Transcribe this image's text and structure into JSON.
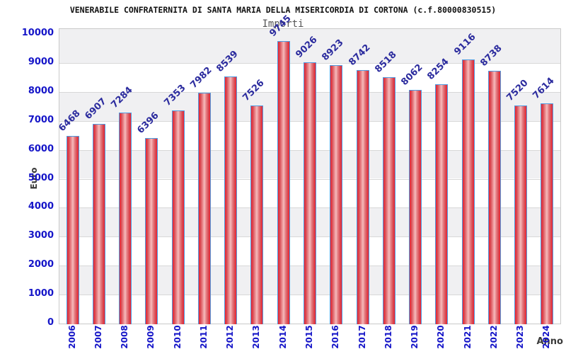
{
  "chart_data": {
    "type": "bar",
    "title": "VENERABILE CONFRATERNITA DI SANTA MARIA DELLA MISERICORDIA DI CORTONA (c.f.80000830515)",
    "subtitle": "Importi",
    "xlabel": "Anno",
    "ylabel": "Euro",
    "categories": [
      "2006",
      "2007",
      "2008",
      "2009",
      "2010",
      "2011",
      "2012",
      "2013",
      "2014",
      "2015",
      "2016",
      "2017",
      "2018",
      "2019",
      "2020",
      "2021",
      "2022",
      "2023",
      "2024"
    ],
    "values": [
      6468,
      6907,
      7284,
      6396,
      7353,
      7982,
      8539,
      7526,
      9745,
      9026,
      8923,
      8742,
      8518,
      8062,
      8254,
      9116,
      8738,
      7520,
      7614
    ],
    "ylim": [
      0,
      10000
    ],
    "ytick_step": 1000,
    "grid": "horizontal gridlines with alternating gray/white bands",
    "legend": "none",
    "bar_value_labels_rotation_deg": -45,
    "x_tick_rotation_deg": -90
  },
  "colors": {
    "bar_red_edge": "#ee2130",
    "bar_pink_center": "#f7bcbd",
    "bar_border_blue": "#4f9be0",
    "tick_label_blue": "#1515c8",
    "value_label_blue": "#2b2b9e",
    "axis_title_gray": "#3a3a3a",
    "band_gray": "#f0f0f2",
    "gridline_gray": "#d8d8d8",
    "plot_border_gray": "#c9c9c9",
    "title_color": "#111111",
    "subtitle_color": "#555555"
  }
}
